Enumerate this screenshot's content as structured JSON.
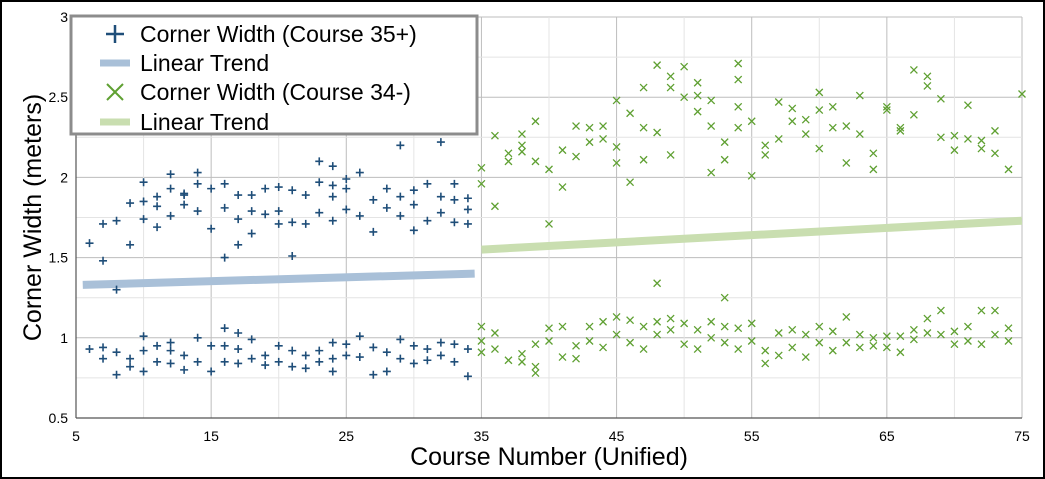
{
  "chart_data": {
    "type": "scatter",
    "title": "",
    "xlabel": "Course Number (Unified)",
    "ylabel": "Corner Width (meters)",
    "xlim": [
      5,
      75
    ],
    "ylim": [
      0.5,
      3
    ],
    "x_ticks": [
      5,
      15,
      25,
      35,
      45,
      55,
      65,
      75
    ],
    "y_ticks": [
      0.5,
      1,
      1.5,
      2,
      2.5,
      3
    ],
    "x_ticks_text": [
      "5",
      "15",
      "25",
      "35",
      "45",
      "55",
      "65",
      "75"
    ],
    "y_ticks_text": [
      "0.5",
      "1",
      "1.5",
      "2",
      "2.5",
      "3"
    ],
    "grid": true,
    "legend_position": "top-left",
    "colors": {
      "series_35plus": "#1f4e79",
      "trend_35plus": "#a9c0d8",
      "series_34minus": "#5fa032",
      "trend_34minus": "#c9deb0",
      "grid": "#bdbdbd"
    },
    "legend": [
      {
        "label": "Corner Width (Course 35+)",
        "marker": "plus"
      },
      {
        "label": "Linear Trend",
        "marker": "line"
      },
      {
        "label": "Corner Width (Course 34-)",
        "marker": "x"
      },
      {
        "label": "Linear Trend",
        "marker": "line"
      }
    ],
    "series": [
      {
        "name": "Corner Width (Course 35+)",
        "marker": "plus",
        "points": [
          [
            6,
            1.59
          ],
          [
            7,
            1.48
          ],
          [
            7,
            1.71
          ],
          [
            8,
            1.73
          ],
          [
            8,
            1.3
          ],
          [
            9,
            1.84
          ],
          [
            9,
            1.58
          ],
          [
            10,
            1.97
          ],
          [
            10,
            1.85
          ],
          [
            10,
            1.74
          ],
          [
            11,
            1.82
          ],
          [
            11,
            1.88
          ],
          [
            11,
            1.69
          ],
          [
            12,
            2.02
          ],
          [
            12,
            1.93
          ],
          [
            12,
            1.76
          ],
          [
            13,
            1.89
          ],
          [
            13,
            1.83
          ],
          [
            13,
            1.9
          ],
          [
            14,
            1.96
          ],
          [
            14,
            2.03
          ],
          [
            14,
            1.79
          ],
          [
            15,
            1.93
          ],
          [
            15,
            1.68
          ],
          [
            16,
            1.96
          ],
          [
            16,
            1.81
          ],
          [
            16,
            1.5
          ],
          [
            17,
            1.89
          ],
          [
            17,
            1.74
          ],
          [
            17,
            1.58
          ],
          [
            18,
            1.89
          ],
          [
            18,
            1.79
          ],
          [
            18,
            1.65
          ],
          [
            19,
            1.93
          ],
          [
            19,
            1.77
          ],
          [
            20,
            1.94
          ],
          [
            20,
            1.79
          ],
          [
            20,
            1.71
          ],
          [
            21,
            1.92
          ],
          [
            21,
            1.72
          ],
          [
            21,
            1.51
          ],
          [
            22,
            1.89
          ],
          [
            22,
            1.71
          ],
          [
            23,
            2.1
          ],
          [
            23,
            1.97
          ],
          [
            23,
            1.78
          ],
          [
            24,
            2.07
          ],
          [
            24,
            1.95
          ],
          [
            24,
            1.88
          ],
          [
            24,
            1.73
          ],
          [
            25,
            1.99
          ],
          [
            25,
            1.93
          ],
          [
            25,
            1.8
          ],
          [
            26,
            2.03
          ],
          [
            26,
            1.76
          ],
          [
            27,
            1.86
          ],
          [
            27,
            1.66
          ],
          [
            28,
            1.93
          ],
          [
            28,
            1.81
          ],
          [
            29,
            2.2
          ],
          [
            29,
            1.88
          ],
          [
            29,
            1.76
          ],
          [
            30,
            1.92
          ],
          [
            30,
            1.83
          ],
          [
            30,
            1.67
          ],
          [
            31,
            1.96
          ],
          [
            31,
            1.73
          ],
          [
            32,
            2.22
          ],
          [
            32,
            1.88
          ],
          [
            32,
            1.78
          ],
          [
            33,
            1.96
          ],
          [
            33,
            1.86
          ],
          [
            33,
            1.72
          ],
          [
            34,
            1.87
          ],
          [
            34,
            1.8
          ],
          [
            34,
            1.71
          ],
          [
            6,
            0.93
          ],
          [
            7,
            0.94
          ],
          [
            7,
            0.87
          ],
          [
            8,
            0.77
          ],
          [
            8,
            0.91
          ],
          [
            9,
            0.87
          ],
          [
            9,
            0.82
          ],
          [
            10,
            0.92
          ],
          [
            10,
            1.01
          ],
          [
            10,
            0.79
          ],
          [
            11,
            0.95
          ],
          [
            11,
            0.85
          ],
          [
            12,
            0.97
          ],
          [
            12,
            0.92
          ],
          [
            12,
            0.84
          ],
          [
            13,
            0.89
          ],
          [
            13,
            0.8
          ],
          [
            14,
            1.0
          ],
          [
            14,
            0.85
          ],
          [
            15,
            0.95
          ],
          [
            15,
            0.79
          ],
          [
            16,
            1.06
          ],
          [
            16,
            0.95
          ],
          [
            16,
            0.85
          ],
          [
            17,
            1.03
          ],
          [
            17,
            0.93
          ],
          [
            17,
            0.84
          ],
          [
            18,
            0.99
          ],
          [
            18,
            0.87
          ],
          [
            19,
            0.89
          ],
          [
            19,
            0.83
          ],
          [
            20,
            0.95
          ],
          [
            20,
            0.85
          ],
          [
            21,
            0.92
          ],
          [
            21,
            0.82
          ],
          [
            22,
            0.89
          ],
          [
            22,
            0.81
          ],
          [
            23,
            0.92
          ],
          [
            23,
            0.85
          ],
          [
            24,
            0.97
          ],
          [
            24,
            0.87
          ],
          [
            24,
            0.79
          ],
          [
            25,
            0.96
          ],
          [
            25,
            0.89
          ],
          [
            26,
            1.01
          ],
          [
            26,
            0.88
          ],
          [
            27,
            0.94
          ],
          [
            27,
            0.77
          ],
          [
            28,
            0.91
          ],
          [
            28,
            0.79
          ],
          [
            29,
            0.99
          ],
          [
            29,
            0.87
          ],
          [
            30,
            0.95
          ],
          [
            30,
            0.84
          ],
          [
            31,
            0.93
          ],
          [
            31,
            0.86
          ],
          [
            32,
            0.97
          ],
          [
            32,
            0.89
          ],
          [
            33,
            0.96
          ],
          [
            33,
            0.85
          ],
          [
            34,
            0.93
          ],
          [
            34,
            0.76
          ]
        ]
      },
      {
        "name": "Linear Trend",
        "marker": "line",
        "points": [
          [
            5.5,
            1.33
          ],
          [
            34.5,
            1.4
          ]
        ]
      },
      {
        "name": "Corner Width (Course 34-)",
        "marker": "x",
        "points": [
          [
            35,
            2.06
          ],
          [
            35,
            1.96
          ],
          [
            36,
            2.26
          ],
          [
            36,
            1.82
          ],
          [
            37,
            2.1
          ],
          [
            37,
            2.15
          ],
          [
            38,
            2.27
          ],
          [
            38,
            2.2
          ],
          [
            38,
            2.16
          ],
          [
            39,
            2.35
          ],
          [
            39,
            2.1
          ],
          [
            40,
            2.05
          ],
          [
            40,
            1.71
          ],
          [
            41,
            2.17
          ],
          [
            41,
            1.94
          ],
          [
            42,
            2.32
          ],
          [
            42,
            2.13
          ],
          [
            43,
            2.31
          ],
          [
            43,
            2.22
          ],
          [
            44,
            2.32
          ],
          [
            44,
            2.24
          ],
          [
            45,
            2.19
          ],
          [
            45,
            2.48
          ],
          [
            45,
            2.09
          ],
          [
            46,
            2.4
          ],
          [
            46,
            1.97
          ],
          [
            47,
            2.56
          ],
          [
            47,
            2.31
          ],
          [
            47,
            2.11
          ],
          [
            48,
            2.7
          ],
          [
            48,
            2.28
          ],
          [
            49,
            2.63
          ],
          [
            49,
            2.56
          ],
          [
            49,
            2.14
          ],
          [
            50,
            2.69
          ],
          [
            50,
            2.5
          ],
          [
            51,
            2.59
          ],
          [
            51,
            2.51
          ],
          [
            51,
            2.41
          ],
          [
            52,
            2.48
          ],
          [
            52,
            2.32
          ],
          [
            52,
            2.03
          ],
          [
            53,
            2.22
          ],
          [
            53,
            2.11
          ],
          [
            54,
            2.71
          ],
          [
            54,
            2.61
          ],
          [
            54,
            2.44
          ],
          [
            54,
            2.31
          ],
          [
            55,
            2.35
          ],
          [
            55,
            2.01
          ],
          [
            56,
            2.2
          ],
          [
            56,
            2.14
          ],
          [
            57,
            2.47
          ],
          [
            57,
            2.24
          ],
          [
            58,
            2.43
          ],
          [
            58,
            2.35
          ],
          [
            59,
            2.36
          ],
          [
            59,
            2.27
          ],
          [
            60,
            2.53
          ],
          [
            60,
            2.42
          ],
          [
            60,
            2.18
          ],
          [
            61,
            2.44
          ],
          [
            61,
            2.31
          ],
          [
            62,
            2.32
          ],
          [
            62,
            2.09
          ],
          [
            63,
            2.51
          ],
          [
            63,
            2.27
          ],
          [
            64,
            2.15
          ],
          [
            64,
            2.05
          ],
          [
            65,
            2.44
          ],
          [
            65,
            2.42
          ],
          [
            66,
            2.31
          ],
          [
            66,
            2.29
          ],
          [
            67,
            2.67
          ],
          [
            67,
            2.39
          ],
          [
            68,
            2.63
          ],
          [
            68,
            2.57
          ],
          [
            69,
            2.25
          ],
          [
            69,
            2.49
          ],
          [
            70,
            2.26
          ],
          [
            70,
            2.17
          ],
          [
            71,
            2.45
          ],
          [
            71,
            2.24
          ],
          [
            72,
            2.23
          ],
          [
            72,
            2.18
          ],
          [
            73,
            2.29
          ],
          [
            73,
            2.15
          ],
          [
            74,
            2.05
          ],
          [
            75,
            2.52
          ],
          [
            35,
            1.07
          ],
          [
            35,
            0.98
          ],
          [
            35,
            0.91
          ],
          [
            36,
            1.03
          ],
          [
            36,
            0.93
          ],
          [
            37,
            0.86
          ],
          [
            38,
            0.9
          ],
          [
            38,
            0.85
          ],
          [
            39,
            0.96
          ],
          [
            39,
            0.82
          ],
          [
            39,
            0.78
          ],
          [
            40,
            1.06
          ],
          [
            40,
            0.98
          ],
          [
            41,
            1.07
          ],
          [
            41,
            0.88
          ],
          [
            42,
            0.95
          ],
          [
            42,
            0.87
          ],
          [
            43,
            1.07
          ],
          [
            43,
            0.98
          ],
          [
            44,
            1.1
          ],
          [
            44,
            0.94
          ],
          [
            45,
            1.13
          ],
          [
            45,
            1.02
          ],
          [
            46,
            1.11
          ],
          [
            46,
            0.97
          ],
          [
            47,
            1.07
          ],
          [
            47,
            0.93
          ],
          [
            48,
            1.34
          ],
          [
            48,
            1.1
          ],
          [
            48,
            1.02
          ],
          [
            49,
            1.12
          ],
          [
            49,
            1.05
          ],
          [
            50,
            1.09
          ],
          [
            50,
            0.96
          ],
          [
            51,
            1.05
          ],
          [
            51,
            0.93
          ],
          [
            52,
            1.1
          ],
          [
            52,
            1.0
          ],
          [
            53,
            1.25
          ],
          [
            53,
            1.07
          ],
          [
            53,
            0.97
          ],
          [
            54,
            1.06
          ],
          [
            54,
            0.93
          ],
          [
            55,
            1.09
          ],
          [
            55,
            0.98
          ],
          [
            56,
            0.92
          ],
          [
            56,
            0.84
          ],
          [
            57,
            1.03
          ],
          [
            57,
            0.89
          ],
          [
            58,
            1.05
          ],
          [
            58,
            0.94
          ],
          [
            59,
            1.02
          ],
          [
            59,
            0.88
          ],
          [
            60,
            1.07
          ],
          [
            60,
            0.97
          ],
          [
            61,
            1.04
          ],
          [
            61,
            0.92
          ],
          [
            62,
            1.13
          ],
          [
            62,
            0.97
          ],
          [
            63,
            1.02
          ],
          [
            63,
            0.94
          ],
          [
            64,
            1.0
          ],
          [
            64,
            0.95
          ],
          [
            65,
            1.01
          ],
          [
            65,
            0.94
          ],
          [
            66,
            1.01
          ],
          [
            66,
            0.91
          ],
          [
            67,
            1.05
          ],
          [
            67,
            0.99
          ],
          [
            68,
            1.12
          ],
          [
            68,
            1.03
          ],
          [
            69,
            1.17
          ],
          [
            69,
            1.02
          ],
          [
            70,
            1.04
          ],
          [
            70,
            0.96
          ],
          [
            71,
            1.07
          ],
          [
            71,
            0.98
          ],
          [
            72,
            1.17
          ],
          [
            72,
            0.96
          ],
          [
            73,
            1.17
          ],
          [
            73,
            1.02
          ],
          [
            74,
            1.06
          ],
          [
            74,
            0.98
          ]
        ]
      },
      {
        "name": "Linear Trend",
        "marker": "line",
        "points": [
          [
            35,
            1.55
          ],
          [
            75,
            1.73
          ]
        ]
      }
    ]
  }
}
